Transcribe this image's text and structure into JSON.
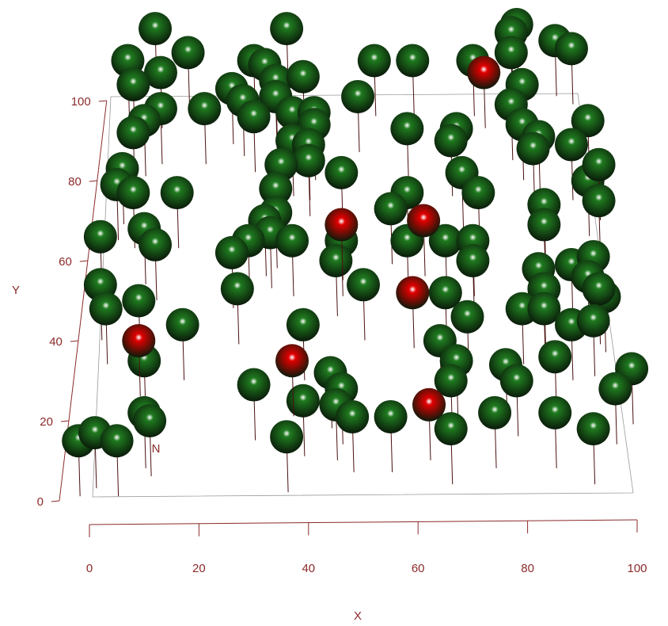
{
  "chart_data": {
    "type": "scatter3d",
    "x_label": "X",
    "y_label": "Y",
    "annotation": "N",
    "xlim": [
      0,
      100
    ],
    "ylim": [
      0,
      100
    ],
    "xticks": [
      0,
      20,
      40,
      60,
      80,
      100
    ],
    "yticks": [
      0,
      20,
      40,
      60,
      80,
      100
    ],
    "axis_color": "#8b2a2a",
    "series": [
      {
        "name": "green",
        "color": "#1f7a1f",
        "x": [
          12,
          36,
          78,
          77,
          85,
          88,
          18,
          7,
          30,
          32,
          13,
          52,
          59,
          70,
          77,
          8,
          34,
          39,
          79,
          26,
          28,
          34,
          49,
          21,
          13,
          10,
          30,
          37,
          41,
          41,
          58,
          67,
          66,
          77,
          79,
          82,
          81,
          91,
          88,
          8,
          37,
          40,
          40,
          35,
          6,
          5,
          8,
          16,
          34,
          46,
          58,
          55,
          68,
          71,
          83,
          83,
          91,
          93,
          93,
          34,
          32,
          33,
          29,
          26,
          37,
          46,
          45,
          58,
          65,
          70,
          70,
          2,
          10,
          12,
          82,
          88,
          92,
          91,
          2,
          3,
          27,
          50,
          65,
          83,
          79,
          83,
          94,
          93,
          17,
          39,
          9,
          69,
          88,
          92,
          64,
          85,
          10,
          67,
          76,
          78,
          99,
          96,
          66,
          30,
          39,
          44,
          46,
          45,
          48,
          55,
          10,
          11,
          -2,
          1,
          5,
          36,
          66,
          74,
          85,
          92
        ],
        "values": [
          118,
          118,
          119,
          117,
          115,
          113,
          112,
          110,
          110,
          109,
          107,
          110,
          110,
          110,
          112,
          104,
          105,
          106,
          104,
          103,
          100,
          101,
          101,
          98,
          98,
          95,
          96,
          97,
          97,
          94,
          93,
          93,
          90,
          99,
          94,
          91,
          88,
          95,
          89,
          92,
          90,
          89,
          85,
          84,
          83,
          79,
          77,
          77,
          78,
          82,
          77,
          73,
          82,
          77,
          74,
          69,
          80,
          84,
          75,
          72,
          70,
          67,
          65,
          62,
          65,
          65,
          60,
          65,
          65,
          65,
          60,
          66,
          68,
          64,
          58,
          59,
          61,
          56,
          54,
          48,
          53,
          54,
          52,
          53,
          48,
          48,
          51,
          53,
          44,
          44,
          50,
          46,
          44,
          45,
          40,
          36,
          35,
          35,
          34,
          30,
          33,
          28,
          30,
          29,
          25,
          32,
          28,
          24,
          21,
          21,
          22,
          20,
          15,
          17,
          15,
          16,
          18,
          22,
          22,
          18
        ]
      },
      {
        "name": "red",
        "color": "#e00000",
        "x": [
          72,
          46,
          61,
          59,
          9,
          37,
          62
        ],
        "values": [
          107,
          69,
          70,
          52,
          40,
          35,
          24
        ]
      }
    ]
  }
}
